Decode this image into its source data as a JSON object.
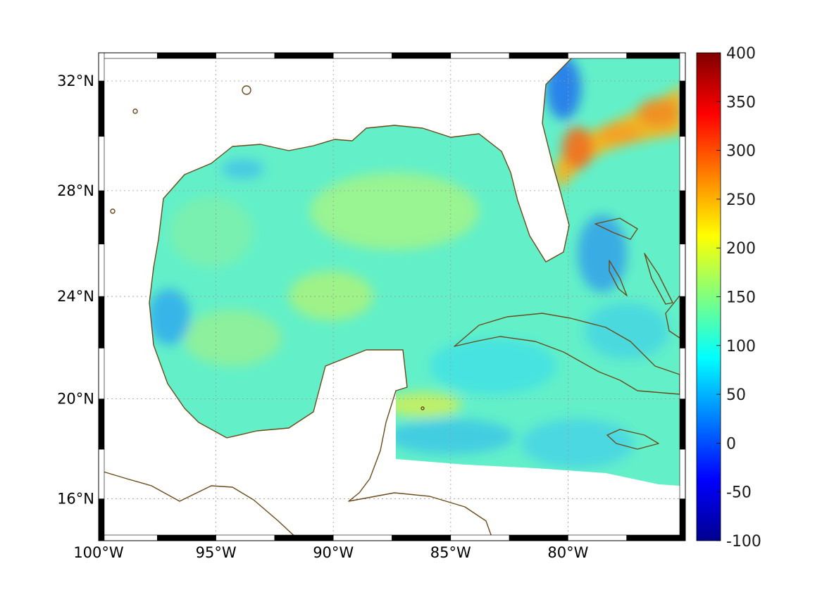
{
  "map": {
    "projection": "Mercator",
    "extent": {
      "lon": [
        -100,
        -75
      ],
      "lat": [
        14.3,
        33
      ]
    },
    "lon_ticks": [
      {
        "value": -100,
        "label": "100°W"
      },
      {
        "value": -95,
        "label": "95°W"
      },
      {
        "value": -90,
        "label": "90°W"
      },
      {
        "value": -85,
        "label": "85°W"
      },
      {
        "value": -80,
        "label": "80°W"
      }
    ],
    "lat_ticks": [
      {
        "value": 32,
        "label": "32°N"
      },
      {
        "value": 28,
        "label": "28°N"
      },
      {
        "value": 24,
        "label": "24°N"
      },
      {
        "value": 20,
        "label": "20°N"
      },
      {
        "value": 16,
        "label": "16°N"
      }
    ],
    "grid": true,
    "coastline_color": "#6b4a1a",
    "land_fill": "#ffffff",
    "colormap": "jet"
  },
  "colorbar": {
    "min": -100,
    "max": 400,
    "position": "right",
    "tick_labels": [
      "400",
      "350",
      "300",
      "250",
      "200",
      "150",
      "100",
      "50",
      "0",
      "-50",
      "-100"
    ]
  },
  "features": {
    "gulf_stream_max_value": 300,
    "typical_gulf_value": 130
  }
}
